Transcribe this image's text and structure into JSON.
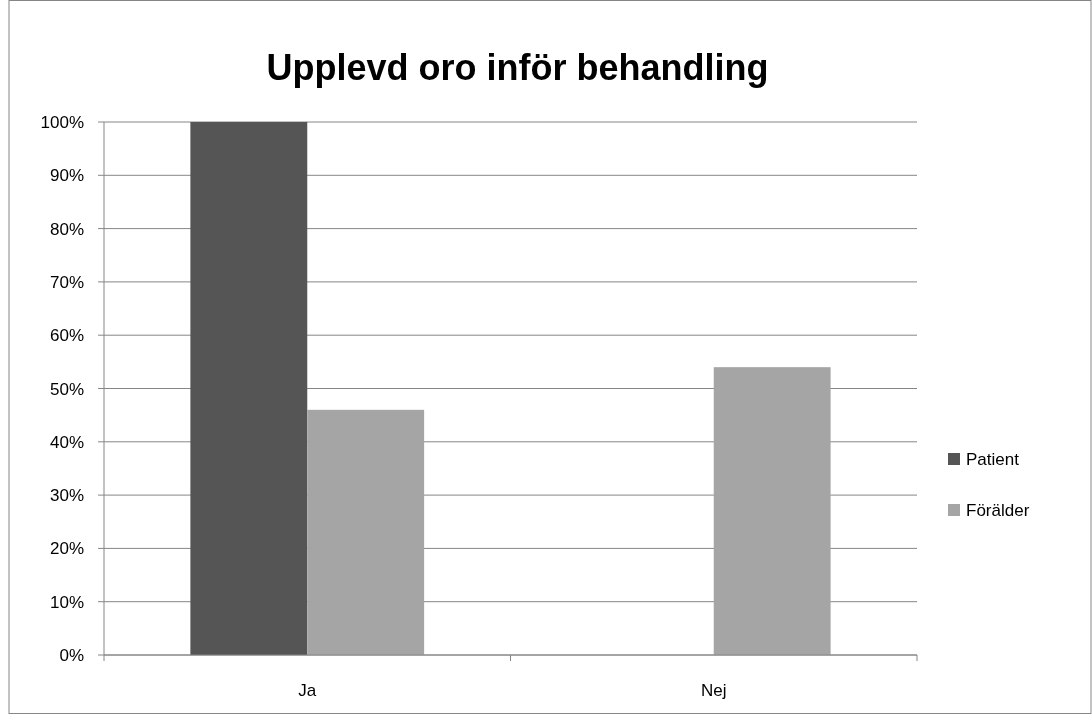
{
  "chart_data": {
    "type": "bar",
    "title": "Upplevd oro inför behandling",
    "categories": [
      "Ja",
      "Nej"
    ],
    "series": [
      {
        "name": "Patient",
        "color": "#555555",
        "values": [
          100,
          0
        ]
      },
      {
        "name": "Förälder",
        "color": "#a5a5a5",
        "values": [
          46,
          54
        ]
      }
    ],
    "ylim": [
      0,
      100
    ],
    "yticks": [
      {
        "value": 0,
        "label": "0%"
      },
      {
        "value": 10,
        "label": "10%"
      },
      {
        "value": 20,
        "label": "20%"
      },
      {
        "value": 30,
        "label": "30%"
      },
      {
        "value": 40,
        "label": "40%"
      },
      {
        "value": 50,
        "label": "50%"
      },
      {
        "value": 60,
        "label": "60%"
      },
      {
        "value": 70,
        "label": "70%"
      },
      {
        "value": 80,
        "label": "80%"
      },
      {
        "value": 90,
        "label": "90%"
      },
      {
        "value": 100,
        "label": "100%"
      }
    ],
    "grid": "y",
    "legend": "right"
  }
}
